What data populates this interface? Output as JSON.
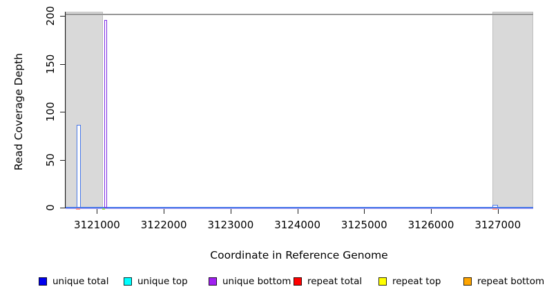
{
  "figure": {
    "xlabel": "Coordinate in Reference Genome",
    "ylabel": "Read Coverage Depth"
  },
  "chart_data": {
    "type": "bar",
    "title": "",
    "xlabel": "Coordinate in Reference Genome",
    "ylabel": "Read Coverage Depth",
    "xlim": [
      3120530,
      3127530
    ],
    "ylim": [
      0,
      200
    ],
    "xticks": [
      3121000,
      3122000,
      3123000,
      3124000,
      3125000,
      3126000,
      3127000
    ],
    "yticks": [
      0,
      50,
      100,
      150,
      200
    ],
    "grid": false,
    "cap_line_y": 200,
    "shaded_regions": [
      {
        "name": "flank-left",
        "x_start": 3120530,
        "x_end": 3121090,
        "color": "#d9d9d9"
      },
      {
        "name": "flank-right",
        "x_start": 3126920,
        "x_end": 3127530,
        "color": "#d9d9d9"
      }
    ],
    "peaks": [
      {
        "series": "unique total",
        "x_start": 3120700,
        "x_end": 3120760,
        "height": 86,
        "color": "#4575e8"
      },
      {
        "series": "unique bottom",
        "x_start": 3121105,
        "x_end": 3121152,
        "height": 196,
        "color": "#7b2be2"
      },
      {
        "series": "unique total",
        "x_start": 3126925,
        "x_end": 3127005,
        "height": 3,
        "color": "#4575e8"
      }
    ],
    "baseline_marks": [
      {
        "series": "repeat total",
        "x_start": 3120690,
        "x_end": 3120745,
        "color": "#ff9488"
      },
      {
        "series": "repeat top",
        "x_start": 3121075,
        "x_end": 3121115,
        "color": "#a4de52"
      },
      {
        "series": "repeat total",
        "x_start": 3126925,
        "x_end": 3126990,
        "color": "#ff9488"
      }
    ],
    "baseline_colors": {
      "top": "#4575e8",
      "bottom": "#b4a4f2"
    },
    "legend_position": "bottom"
  },
  "legend": {
    "items": [
      {
        "label": "unique total",
        "color": "#0000ee"
      },
      {
        "label": "unique top",
        "color": "#00ffff"
      },
      {
        "label": "unique bottom",
        "color": "#a020f0"
      },
      {
        "label": "repeat total",
        "color": "#ff0000"
      },
      {
        "label": "repeat top",
        "color": "#ffff00"
      },
      {
        "label": "repeat bottom",
        "color": "#ffa500"
      }
    ]
  }
}
